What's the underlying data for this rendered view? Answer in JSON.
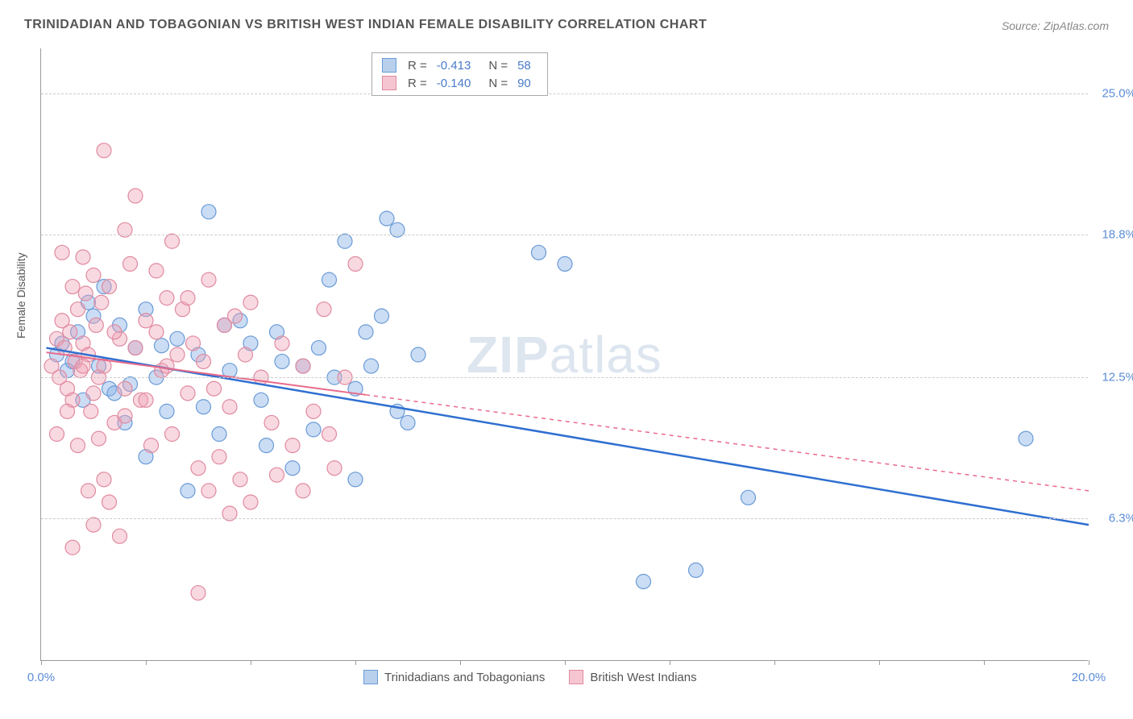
{
  "title": "TRINIDADIAN AND TOBAGONIAN VS BRITISH WEST INDIAN FEMALE DISABILITY CORRELATION CHART",
  "source": "Source: ZipAtlas.com",
  "watermark_bold": "ZIP",
  "watermark_rest": "atlas",
  "chart": {
    "type": "scatter",
    "ylabel": "Female Disability",
    "x_range": [
      0,
      20
    ],
    "y_range": [
      0,
      27
    ],
    "y_ticks": [
      {
        "v": 6.3,
        "label": "6.3%"
      },
      {
        "v": 12.5,
        "label": "12.5%"
      },
      {
        "v": 18.8,
        "label": "18.8%"
      },
      {
        "v": 25.0,
        "label": "25.0%"
      }
    ],
    "x_ticks": [
      0,
      2,
      4,
      6,
      8,
      10,
      12,
      14,
      16,
      18,
      20
    ],
    "x_tick_labels": {
      "0": "0.0%",
      "20": "20.0%"
    },
    "grid_color": "#cccccc",
    "background_color": "#ffffff",
    "series": [
      {
        "name": "Trinidadians and Tobagonians",
        "marker_fill": "rgba(140,180,230,0.45)",
        "marker_stroke": "#6a9bd8",
        "swatch_fill": "#b8d0ec",
        "swatch_border": "#6a9bd8",
        "line_color": "#2f6fd0",
        "line_width": 2.5,
        "line_dash": "none",
        "R": "-0.413",
        "N": "58",
        "regression": {
          "x1": 0.1,
          "y1": 13.8,
          "x2": 20,
          "y2": 6.0
        },
        "points": [
          [
            0.3,
            13.5
          ],
          [
            0.4,
            14.0
          ],
          [
            0.5,
            12.8
          ],
          [
            0.6,
            13.2
          ],
          [
            0.7,
            14.5
          ],
          [
            0.8,
            11.5
          ],
          [
            1.0,
            15.2
          ],
          [
            1.1,
            13.0
          ],
          [
            1.2,
            16.5
          ],
          [
            1.3,
            12.0
          ],
          [
            1.5,
            14.8
          ],
          [
            1.6,
            10.5
          ],
          [
            1.8,
            13.8
          ],
          [
            2.0,
            15.5
          ],
          [
            2.2,
            12.5
          ],
          [
            2.4,
            11.0
          ],
          [
            2.6,
            14.2
          ],
          [
            2.8,
            7.5
          ],
          [
            3.0,
            13.5
          ],
          [
            3.2,
            19.8
          ],
          [
            3.4,
            10.0
          ],
          [
            3.6,
            12.8
          ],
          [
            3.8,
            15.0
          ],
          [
            4.0,
            14.0
          ],
          [
            4.2,
            11.5
          ],
          [
            4.5,
            14.5
          ],
          [
            4.8,
            8.5
          ],
          [
            5.0,
            13.0
          ],
          [
            5.2,
            10.2
          ],
          [
            5.5,
            16.8
          ],
          [
            5.8,
            18.5
          ],
          [
            6.0,
            12.0
          ],
          [
            6.0,
            8.0
          ],
          [
            6.2,
            14.5
          ],
          [
            6.5,
            15.2
          ],
          [
            6.6,
            19.5
          ],
          [
            6.8,
            11.0
          ],
          [
            7.0,
            10.5
          ],
          [
            7.2,
            13.5
          ],
          [
            9.5,
            18.0
          ],
          [
            10.0,
            17.5
          ],
          [
            11.5,
            3.5
          ],
          [
            12.5,
            4.0
          ],
          [
            13.5,
            7.2
          ],
          [
            18.8,
            9.8
          ],
          [
            6.8,
            19.0
          ],
          [
            2.0,
            9.0
          ],
          [
            1.4,
            11.8
          ],
          [
            0.9,
            15.8
          ],
          [
            1.7,
            12.2
          ],
          [
            2.3,
            13.9
          ],
          [
            3.1,
            11.2
          ],
          [
            4.3,
            9.5
          ],
          [
            5.3,
            13.8
          ],
          [
            5.6,
            12.5
          ],
          [
            6.3,
            13.0
          ],
          [
            4.6,
            13.2
          ],
          [
            3.5,
            14.8
          ]
        ]
      },
      {
        "name": "British West Indians",
        "marker_fill": "rgba(240,160,180,0.40)",
        "marker_stroke": "#e08aa0",
        "swatch_fill": "#f5c6d2",
        "swatch_border": "#e08aa0",
        "line_color": "#e86a8a",
        "line_width": 2,
        "line_dash": "solid_then_dash",
        "R": "-0.140",
        "N": "90",
        "regression": {
          "x1": 0.1,
          "y1": 13.6,
          "x2": 20,
          "y2": 7.5
        },
        "points": [
          [
            0.2,
            13.0
          ],
          [
            0.3,
            14.2
          ],
          [
            0.35,
            12.5
          ],
          [
            0.4,
            15.0
          ],
          [
            0.45,
            13.8
          ],
          [
            0.5,
            12.0
          ],
          [
            0.55,
            14.5
          ],
          [
            0.6,
            11.5
          ],
          [
            0.65,
            13.2
          ],
          [
            0.7,
            15.5
          ],
          [
            0.75,
            12.8
          ],
          [
            0.8,
            14.0
          ],
          [
            0.85,
            16.2
          ],
          [
            0.9,
            13.5
          ],
          [
            0.95,
            11.0
          ],
          [
            1.0,
            17.0
          ],
          [
            1.05,
            14.8
          ],
          [
            1.1,
            12.5
          ],
          [
            1.15,
            15.8
          ],
          [
            1.2,
            13.0
          ],
          [
            1.3,
            16.5
          ],
          [
            1.4,
            10.5
          ],
          [
            1.5,
            14.2
          ],
          [
            1.6,
            12.0
          ],
          [
            1.7,
            17.5
          ],
          [
            1.8,
            13.8
          ],
          [
            1.9,
            11.5
          ],
          [
            2.0,
            15.0
          ],
          [
            2.1,
            9.5
          ],
          [
            2.2,
            14.5
          ],
          [
            2.3,
            12.8
          ],
          [
            2.4,
            16.0
          ],
          [
            2.5,
            10.0
          ],
          [
            2.6,
            13.5
          ],
          [
            2.7,
            15.5
          ],
          [
            2.8,
            11.8
          ],
          [
            2.9,
            14.0
          ],
          [
            3.0,
            8.5
          ],
          [
            3.1,
            13.2
          ],
          [
            3.2,
            16.8
          ],
          [
            3.3,
            12.0
          ],
          [
            3.4,
            9.0
          ],
          [
            3.5,
            14.8
          ],
          [
            3.6,
            11.2
          ],
          [
            3.7,
            15.2
          ],
          [
            3.8,
            8.0
          ],
          [
            3.9,
            13.5
          ],
          [
            4.0,
            7.0
          ],
          [
            4.2,
            12.5
          ],
          [
            4.4,
            10.5
          ],
          [
            4.6,
            14.0
          ],
          [
            4.8,
            9.5
          ],
          [
            5.0,
            13.0
          ],
          [
            5.2,
            11.0
          ],
          [
            5.4,
            15.5
          ],
          [
            5.6,
            8.5
          ],
          [
            5.8,
            12.5
          ],
          [
            6.0,
            17.5
          ],
          [
            1.2,
            22.5
          ],
          [
            1.6,
            19.0
          ],
          [
            1.8,
            20.5
          ],
          [
            0.8,
            17.8
          ],
          [
            0.6,
            16.5
          ],
          [
            0.4,
            18.0
          ],
          [
            1.0,
            6.0
          ],
          [
            1.2,
            8.0
          ],
          [
            0.7,
            9.5
          ],
          [
            0.5,
            11.0
          ],
          [
            0.3,
            10.0
          ],
          [
            0.9,
            7.5
          ],
          [
            1.1,
            9.8
          ],
          [
            1.3,
            7.0
          ],
          [
            2.2,
            17.2
          ],
          [
            2.5,
            18.5
          ],
          [
            2.8,
            16.0
          ],
          [
            3.2,
            7.5
          ],
          [
            3.6,
            6.5
          ],
          [
            4.0,
            15.8
          ],
          [
            4.5,
            8.2
          ],
          [
            5.0,
            7.5
          ],
          [
            5.5,
            10.0
          ],
          [
            3.0,
            3.0
          ],
          [
            1.5,
            5.5
          ],
          [
            0.6,
            5.0
          ],
          [
            2.0,
            11.5
          ],
          [
            2.4,
            13.0
          ],
          [
            1.4,
            14.5
          ],
          [
            0.8,
            13.0
          ],
          [
            1.0,
            11.8
          ],
          [
            1.6,
            10.8
          ]
        ]
      }
    ]
  }
}
